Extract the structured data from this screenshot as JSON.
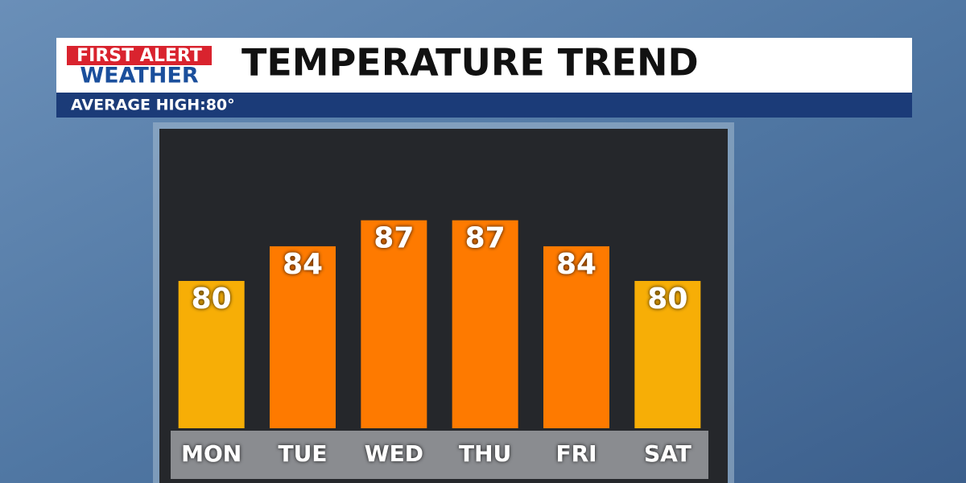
{
  "chart_data": {
    "type": "bar",
    "logo": [
      "FIRST ALERT",
      "WEATHER"
    ],
    "title": "TEMPERATURE TREND",
    "subtitle": "AVERAGE HIGH:80°",
    "categories": [
      "MON",
      "TUE",
      "WED",
      "THU",
      "FRI",
      "SAT"
    ],
    "values": [
      80,
      84,
      87,
      87,
      84,
      80
    ],
    "colors": [
      "#f7ae06",
      "#fe7a00",
      "#fe7a00",
      "#fe7a00",
      "#fe7a00",
      "#f7ae06"
    ],
    "ylim": [
      63,
      97
    ]
  }
}
